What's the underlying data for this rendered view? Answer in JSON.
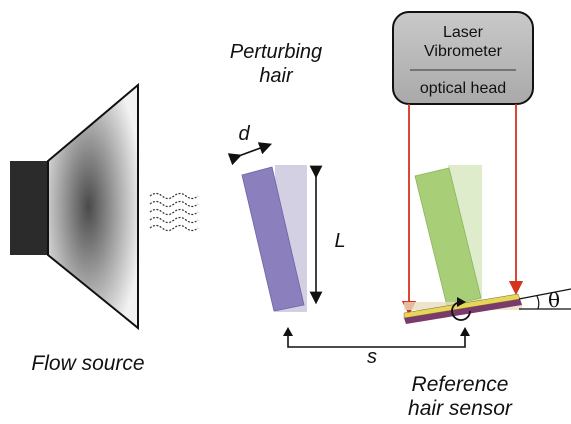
{
  "labels": {
    "perturbing_line1": "Perturbing",
    "perturbing_line2": "hair",
    "laser_line1": "Laser",
    "laser_line2": "Vibrometer",
    "laser_line3": "optical head",
    "d": "d",
    "L": "L",
    "s": "s",
    "theta": "θ",
    "flow_source": "Flow source",
    "reference_line1": "Reference",
    "reference_line2": "hair sensor"
  },
  "colors": {
    "speaker_dark": "#2b2b2b",
    "cone_edge": "#111111",
    "perturbing_hair": "#8b7fbd",
    "perturbing_ghost": "#d4d0e4",
    "reference_hair": "#a8cf78",
    "reference_ghost": "#dfeccb",
    "laser_box": "#bdbdbd",
    "laser_beam": "#d6331c",
    "sensor_plate": "#e6d65a",
    "sensor_base": "#7a3a6b"
  },
  "icons": {
    "airflow": "wavy-lines-icon",
    "rotation": "rotation-arrow-icon"
  }
}
